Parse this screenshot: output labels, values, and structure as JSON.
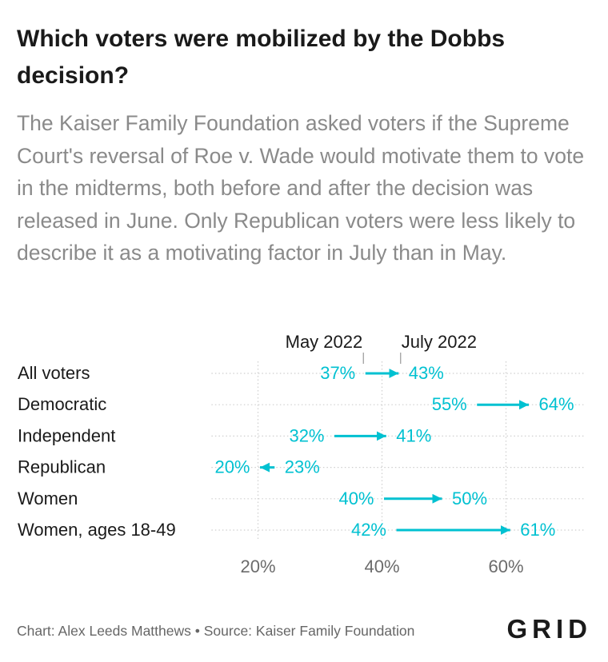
{
  "header": {
    "title": "Which voters were mobilized by the Dobbs decision?",
    "subtitle": "The Kaiser Family Foundation asked voters if the Supreme Court's reversal of Roe v. Wade would motivate them to vote in the midterms, both before and after the decision was released in June. Only Republican voters were less likely to describe it as a motivating factor in July than in May."
  },
  "chart_data": {
    "type": "dot-arrow",
    "series": [
      {
        "name": "May 2022",
        "values": [
          37,
          55,
          32,
          23,
          40,
          42
        ]
      },
      {
        "name": "July 2022",
        "values": [
          43,
          64,
          41,
          20,
          50,
          61
        ]
      }
    ],
    "categories": [
      "All voters",
      "Democratic",
      "Independent",
      "Republican",
      "Women",
      "Women, ages 18-49"
    ],
    "value_suffix": "%",
    "x_ticks": [
      20,
      40,
      60
    ],
    "x_tick_labels": [
      "20%",
      "40%",
      "60%"
    ],
    "xlim": [
      12.5,
      72.5
    ],
    "grid": true,
    "colors": {
      "accent": "#00c1d1",
      "category_text": "#1a1a1a",
      "axis_text": "#6b6b6b",
      "grid": "#cfcfcf"
    }
  },
  "footer": {
    "credit": "Chart: Alex Leeds Matthews • Source: Kaiser Family Foundation",
    "logo": "GRID"
  }
}
